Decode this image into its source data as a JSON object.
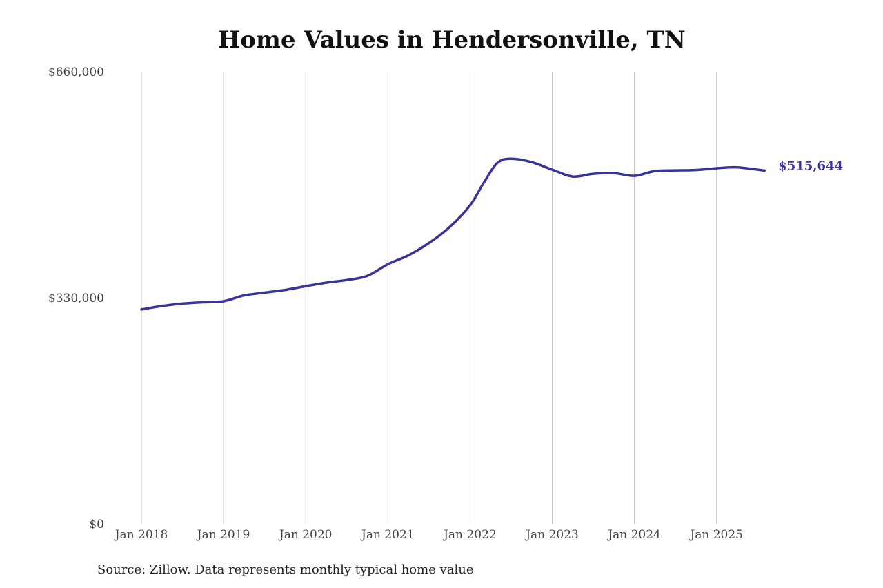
{
  "chart_data": {
    "type": "line",
    "title": "Home Values in Hendersonville, TN",
    "xlabel": "",
    "ylabel": "",
    "ylim": [
      0,
      660000
    ],
    "y_ticks": [
      "$0",
      "$330,000",
      "$660,000"
    ],
    "y_tick_values": [
      0,
      330000,
      660000
    ],
    "x_ticks": [
      "Jan 2018",
      "Jan 2019",
      "Jan 2020",
      "Jan 2021",
      "Jan 2022",
      "Jan 2023",
      "Jan 2024",
      "Jan 2025"
    ],
    "grid": "vertical",
    "end_label": "$515,644",
    "line_color": "#38339a",
    "series": [
      {
        "points": [
          [
            "2018-01",
            313000
          ],
          [
            "2018-04",
            318000
          ],
          [
            "2018-07",
            321500
          ],
          [
            "2018-10",
            323500
          ],
          [
            "2019-01",
            325000
          ],
          [
            "2019-04",
            333500
          ],
          [
            "2019-07",
            337500
          ],
          [
            "2019-10",
            341500
          ],
          [
            "2020-01",
            347000
          ],
          [
            "2020-04",
            352000
          ],
          [
            "2020-07",
            356000
          ],
          [
            "2020-10",
            362000
          ],
          [
            "2021-01",
            379000
          ],
          [
            "2021-04",
            392000
          ],
          [
            "2021-07",
            410000
          ],
          [
            "2021-10",
            433000
          ],
          [
            "2022-01",
            465000
          ],
          [
            "2022-03",
            498000
          ],
          [
            "2022-05",
            527000
          ],
          [
            "2022-07",
            533000
          ],
          [
            "2022-10",
            528000
          ],
          [
            "2023-01",
            517000
          ],
          [
            "2023-04",
            507000
          ],
          [
            "2023-07",
            511000
          ],
          [
            "2023-10",
            512000
          ],
          [
            "2024-01",
            508000
          ],
          [
            "2024-04",
            515000
          ],
          [
            "2024-07",
            516000
          ],
          [
            "2024-10",
            516500
          ],
          [
            "2025-01",
            519000
          ],
          [
            "2025-04",
            520500
          ],
          [
            "2025-08",
            515644
          ]
        ]
      }
    ]
  },
  "source": "Source: Zillow. Data represents monthly typical home value"
}
